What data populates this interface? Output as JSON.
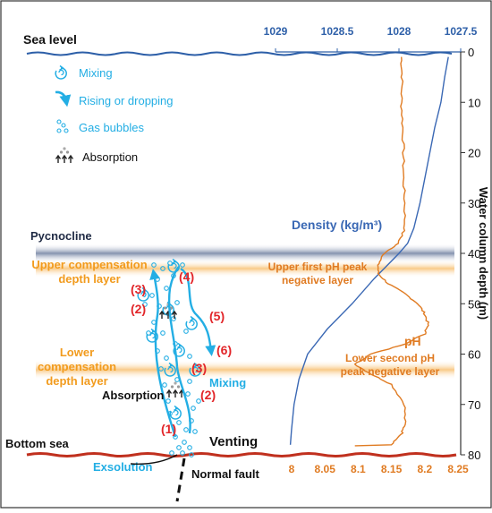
{
  "labels": {
    "sea_level": "Sea level",
    "pycnocline": "Pycnocline",
    "bottom_sea": "Bottom sea",
    "upper_comp_1": "Upper compensation",
    "upper_comp_2": "depth layer",
    "lower_comp_1": "Lower",
    "lower_comp_2": "compensation",
    "lower_comp_3": "depth layer",
    "upper_ph_1": "Upper first pH peak",
    "upper_ph_2": "negative layer",
    "lower_ph_1": "Lower second pH",
    "lower_ph_2": "peak negative layer",
    "density": "Density (kg/m³)",
    "ph": "pH",
    "venting": "Venting",
    "exsolution": "Exsolution",
    "normal_fault": "Normal fault",
    "mixing": "Mixing",
    "absorption": "Absorption",
    "n1": "(1)",
    "n2": "(2)",
    "n3": "(3)",
    "n4": "(4)",
    "n5": "(5)",
    "n6": "(6)"
  },
  "legend": {
    "mixing": "Mixing",
    "rising": "Rising or dropping",
    "bubbles": "Gas bubbles",
    "absorption": "Absorption"
  },
  "axes": {
    "depth_label": "Water column depth (m)",
    "depth_ticks": [
      "0",
      "10",
      "20",
      "30",
      "40",
      "50",
      "60",
      "70",
      "80"
    ],
    "density_ticks": [
      "1029",
      "1028.5",
      "1028",
      "1027.5"
    ],
    "ph_ticks": [
      "8",
      "8.05",
      "8.1",
      "8.15",
      "8.2",
      "8.25"
    ]
  },
  "colors": {
    "density": "#3a68b4",
    "ph": "#e07b22",
    "cyan": "#23aee4",
    "red": "#e2262a",
    "orange_text": "#f29b1d",
    "bottom": "#c0301e"
  },
  "chart_data": {
    "type": "line",
    "y_axis": {
      "label": "Water column depth (m)",
      "lim": [
        0,
        80
      ],
      "inverted": true
    },
    "density_axis": {
      "lim": [
        1029,
        1027.5
      ],
      "reversed": true
    },
    "ph_axis": {
      "lim": [
        8.0,
        8.25
      ]
    },
    "series": [
      {
        "name": "Density (kg/m³)",
        "x_axis": "density",
        "depth": [
          1,
          5,
          10,
          15,
          20,
          25,
          30,
          35,
          38,
          40,
          42,
          45,
          50,
          55,
          60,
          65,
          70,
          75,
          78
        ],
        "values": [
          1027.6,
          1027.63,
          1027.66,
          1027.71,
          1027.75,
          1027.79,
          1027.83,
          1027.88,
          1027.93,
          1028.0,
          1028.08,
          1028.2,
          1028.38,
          1028.58,
          1028.74,
          1028.81,
          1028.85,
          1028.87,
          1028.88
        ]
      },
      {
        "name": "pH",
        "x_axis": "ph",
        "depth": [
          1,
          5,
          10,
          15,
          20,
          25,
          30,
          35,
          38,
          40,
          42,
          44,
          46,
          48,
          50,
          52,
          54,
          56,
          58,
          60,
          62,
          64,
          66,
          70,
          74,
          76,
          78
        ],
        "values": [
          8.165,
          8.166,
          8.165,
          8.167,
          8.168,
          8.168,
          8.17,
          8.17,
          8.16,
          8.14,
          8.13,
          8.13,
          8.145,
          8.17,
          8.19,
          8.2,
          8.205,
          8.2,
          8.17,
          8.12,
          8.095,
          8.12,
          8.15,
          8.17,
          8.17,
          8.165,
          8.15
        ]
      }
    ]
  }
}
